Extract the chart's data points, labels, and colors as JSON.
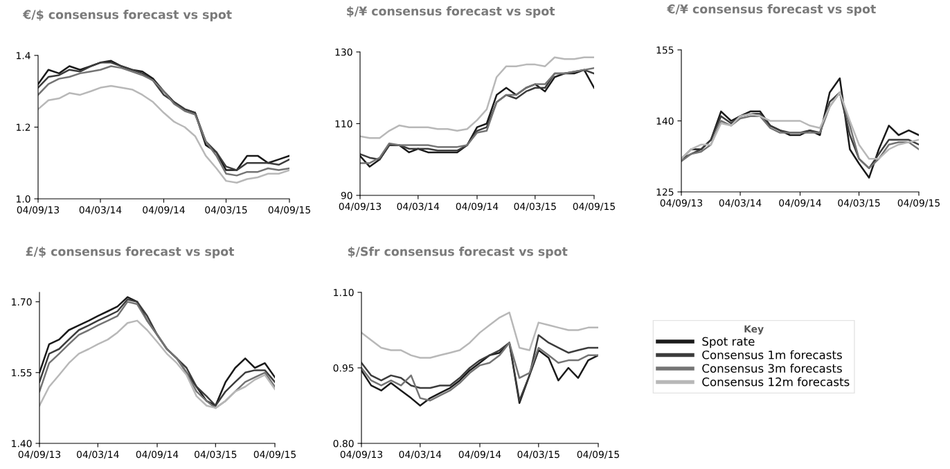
{
  "chart_data": [
    {
      "type": "line",
      "title": "€/$ consensus forecast vs spot",
      "legend_title": "Key",
      "x": [
        "2013-09-04",
        "2013-10-04",
        "2013-11-04",
        "2013-12-04",
        "2014-01-04",
        "2014-02-04",
        "2014-03-04",
        "2014-04-04",
        "2014-05-04",
        "2014-06-04",
        "2014-07-04",
        "2014-08-04",
        "2014-09-04",
        "2014-10-04",
        "2014-11-04",
        "2014-12-04",
        "2015-01-04",
        "2015-02-04",
        "2015-03-04",
        "2015-04-04",
        "2015-05-04",
        "2015-06-04",
        "2015-07-04",
        "2015-08-04",
        "2015-09-04"
      ],
      "series": [
        {
          "name": "Spot rate",
          "color": "#1a1a1a",
          "values": [
            1.32,
            1.36,
            1.35,
            1.37,
            1.36,
            1.37,
            1.38,
            1.385,
            1.37,
            1.36,
            1.355,
            1.335,
            1.3,
            1.27,
            1.25,
            1.24,
            1.15,
            1.13,
            1.08,
            1.08,
            1.12,
            1.12,
            1.1,
            1.11,
            1.12
          ]
        },
        {
          "name": "Consensus 1m forecasts",
          "color": "#3c3c3c",
          "values": [
            1.31,
            1.34,
            1.345,
            1.36,
            1.355,
            1.37,
            1.38,
            1.38,
            1.37,
            1.36,
            1.35,
            1.33,
            1.29,
            1.27,
            1.25,
            1.24,
            1.16,
            1.13,
            1.09,
            1.08,
            1.1,
            1.1,
            1.1,
            1.095,
            1.11
          ]
        },
        {
          "name": "Consensus 3m forecasts",
          "color": "#747474",
          "values": [
            1.29,
            1.32,
            1.335,
            1.34,
            1.35,
            1.355,
            1.36,
            1.37,
            1.365,
            1.355,
            1.345,
            1.33,
            1.3,
            1.265,
            1.245,
            1.235,
            1.16,
            1.12,
            1.07,
            1.065,
            1.075,
            1.075,
            1.085,
            1.08,
            1.085
          ]
        },
        {
          "name": "Consensus 12m forecasts",
          "color": "#b8b8b8",
          "values": [
            1.25,
            1.275,
            1.28,
            1.295,
            1.29,
            1.3,
            1.31,
            1.315,
            1.31,
            1.305,
            1.29,
            1.27,
            1.24,
            1.215,
            1.2,
            1.175,
            1.12,
            1.085,
            1.05,
            1.045,
            1.055,
            1.06,
            1.07,
            1.07,
            1.08
          ]
        }
      ],
      "xlim": [
        "2013-09-04",
        "2015-09-04"
      ],
      "xticks": [
        {
          "value": "2013-09-04",
          "label": "04/09/13"
        },
        {
          "value": "2014-03-04",
          "label": "04/03/14"
        },
        {
          "value": "2014-09-04",
          "label": "04/09/14"
        },
        {
          "value": "2015-03-04",
          "label": "04/03/15"
        },
        {
          "value": "2015-09-04",
          "label": "04/09/15"
        }
      ],
      "ylim": [
        1.0,
        1.4
      ],
      "yticks": [
        {
          "value": 1.0,
          "label": "1.0"
        },
        {
          "value": 1.2,
          "label": "1.2"
        },
        {
          "value": 1.4,
          "label": "1.4"
        }
      ],
      "grid": false,
      "legend": "right"
    },
    {
      "type": "line",
      "title": "$/¥ consensus forecast vs spot",
      "x": [
        "2013-09-04",
        "2013-10-04",
        "2013-11-04",
        "2013-12-04",
        "2014-01-04",
        "2014-02-04",
        "2014-03-04",
        "2014-04-04",
        "2014-05-04",
        "2014-06-04",
        "2014-07-04",
        "2014-08-04",
        "2014-09-04",
        "2014-10-04",
        "2014-11-04",
        "2014-12-04",
        "2015-01-04",
        "2015-02-04",
        "2015-03-04",
        "2015-04-04",
        "2015-05-04",
        "2015-06-04",
        "2015-07-04",
        "2015-08-04",
        "2015-09-04"
      ],
      "series": [
        {
          "color": "#1a1a1a",
          "values": [
            101,
            98,
            100,
            104,
            104,
            102,
            103,
            102,
            102,
            102,
            102,
            104,
            109,
            110,
            118,
            120,
            118,
            120,
            121,
            119,
            123,
            124,
            124,
            125,
            120
          ]
        },
        {
          "color": "#3c3c3c",
          "values": [
            101.5,
            100.5,
            100,
            104,
            104,
            103,
            103,
            103,
            102.5,
            102.5,
            102.5,
            104,
            108,
            109,
            116,
            118,
            117,
            119,
            120,
            120,
            124,
            124,
            124.5,
            125,
            124
          ]
        },
        {
          "color": "#747474",
          "values": [
            99,
            99,
            100.5,
            104.5,
            104,
            104,
            104,
            104,
            103.5,
            103.5,
            103.5,
            104,
            107.5,
            108,
            116,
            118,
            118,
            120,
            121,
            121,
            124,
            124,
            124.5,
            125,
            125.5
          ]
        },
        {
          "color": "#b8b8b8",
          "values": [
            106.5,
            106,
            106,
            108,
            109.5,
            109,
            109,
            109,
            108.5,
            108.5,
            108,
            108.5,
            111,
            114,
            123,
            126,
            126,
            126.5,
            126.5,
            126,
            128.5,
            128,
            128,
            128.5,
            128.5
          ]
        }
      ],
      "xlim": [
        "2013-09-04",
        "2015-09-04"
      ],
      "xticks": [
        {
          "value": "2013-09-04",
          "label": "04/09/13"
        },
        {
          "value": "2014-03-04",
          "label": "04/03/14"
        },
        {
          "value": "2014-09-04",
          "label": "04/09/14"
        },
        {
          "value": "2015-03-04",
          "label": "04/03/15"
        },
        {
          "value": "2015-09-04",
          "label": "04/09/15"
        }
      ],
      "ylim": [
        90,
        130
      ],
      "yticks": [
        90,
        110,
        130
      ],
      "grid": false
    },
    {
      "type": "line",
      "title": "€/¥ consensus forecast vs spot",
      "x": [
        "2013-09-04",
        "2013-10-04",
        "2013-11-04",
        "2013-12-04",
        "2014-01-04",
        "2014-02-04",
        "2014-03-04",
        "2014-04-04",
        "2014-05-04",
        "2014-06-04",
        "2014-07-04",
        "2014-08-04",
        "2014-09-04",
        "2014-10-04",
        "2014-11-04",
        "2014-12-04",
        "2015-01-04",
        "2015-02-04",
        "2015-03-04",
        "2015-04-04",
        "2015-05-04",
        "2015-06-04",
        "2015-07-04",
        "2015-08-04",
        "2015-09-04"
      ],
      "series": [
        {
          "color": "#1a1a1a",
          "values": [
            132,
            134,
            134,
            136,
            142,
            140,
            141,
            142,
            142,
            139,
            138,
            137,
            137,
            138,
            137,
            146,
            149,
            134,
            131,
            128,
            134,
            139,
            137,
            138,
            137
          ]
        },
        {
          "color": "#3c3c3c",
          "values": [
            132,
            133,
            134,
            136,
            141,
            139.5,
            141,
            141.5,
            141.5,
            139,
            138,
            137.5,
            137.5,
            138,
            137.5,
            144,
            146,
            137,
            132,
            130,
            133,
            136,
            136,
            136,
            135
          ]
        },
        {
          "color": "#747474",
          "values": [
            131.5,
            133,
            133.5,
            135,
            140,
            139,
            140.5,
            141,
            141,
            138.5,
            137.5,
            137.5,
            137.5,
            137.5,
            137.5,
            143,
            146,
            139,
            132,
            130,
            132,
            135,
            135.5,
            135.5,
            134
          ]
        },
        {
          "color": "#b8b8b8",
          "values": [
            132,
            134,
            135,
            135,
            139.5,
            139,
            141,
            141.5,
            141,
            140,
            140,
            140,
            140,
            139,
            138.5,
            143,
            146,
            140,
            135,
            132,
            132,
            134,
            135,
            135.5,
            136
          ]
        }
      ],
      "xlim": [
        "2013-09-04",
        "2015-09-04"
      ],
      "xticks": [
        {
          "value": "2013-09-04",
          "label": "04/09/13"
        },
        {
          "value": "2014-03-04",
          "label": "04/03/14"
        },
        {
          "value": "2014-09-04",
          "label": "04/09/14"
        },
        {
          "value": "2015-03-04",
          "label": "04/03/15"
        },
        {
          "value": "2015-09-04",
          "label": "04/09/15"
        }
      ],
      "ylim": [
        125,
        155
      ],
      "yticks": [
        125,
        140,
        155
      ],
      "grid": false
    },
    {
      "type": "line",
      "title": "£/$ consensus forecast vs spot",
      "x": [
        "2013-09-04",
        "2013-10-04",
        "2013-11-04",
        "2013-12-04",
        "2014-01-04",
        "2014-02-04",
        "2014-03-04",
        "2014-04-04",
        "2014-05-04",
        "2014-06-04",
        "2014-07-04",
        "2014-08-04",
        "2014-09-04",
        "2014-10-04",
        "2014-11-04",
        "2014-12-04",
        "2015-01-04",
        "2015-02-04",
        "2015-03-04",
        "2015-04-04",
        "2015-05-04",
        "2015-06-04",
        "2015-07-04",
        "2015-08-04",
        "2015-09-04"
      ],
      "series": [
        {
          "color": "#1a1a1a",
          "values": [
            1.55,
            1.61,
            1.62,
            1.64,
            1.65,
            1.66,
            1.67,
            1.68,
            1.69,
            1.71,
            1.7,
            1.66,
            1.63,
            1.6,
            1.58,
            1.55,
            1.52,
            1.49,
            1.48,
            1.53,
            1.56,
            1.58,
            1.56,
            1.57,
            1.54
          ]
        },
        {
          "color": "#3c3c3c",
          "values": [
            1.53,
            1.59,
            1.6,
            1.62,
            1.64,
            1.65,
            1.66,
            1.67,
            1.68,
            1.705,
            1.7,
            1.67,
            1.63,
            1.6,
            1.58,
            1.56,
            1.52,
            1.5,
            1.48,
            1.51,
            1.53,
            1.55,
            1.555,
            1.555,
            1.53
          ]
        },
        {
          "color": "#747474",
          "values": [
            1.51,
            1.57,
            1.59,
            1.61,
            1.63,
            1.64,
            1.65,
            1.66,
            1.67,
            1.7,
            1.695,
            1.66,
            1.63,
            1.6,
            1.58,
            1.55,
            1.51,
            1.49,
            1.475,
            1.49,
            1.51,
            1.53,
            1.54,
            1.55,
            1.52
          ]
        },
        {
          "color": "#b8b8b8",
          "values": [
            1.48,
            1.52,
            1.545,
            1.57,
            1.59,
            1.6,
            1.61,
            1.62,
            1.635,
            1.655,
            1.66,
            1.64,
            1.615,
            1.59,
            1.57,
            1.545,
            1.5,
            1.48,
            1.475,
            1.49,
            1.51,
            1.52,
            1.535,
            1.545,
            1.515
          ]
        }
      ],
      "xlim": [
        "2013-09-04",
        "2015-09-04"
      ],
      "xticks": [
        {
          "value": "2013-09-04",
          "label": "04/09/13"
        },
        {
          "value": "2014-03-04",
          "label": "04/03/14"
        },
        {
          "value": "2014-09-04",
          "label": "04/09/14"
        },
        {
          "value": "2015-03-04",
          "label": "04/03/15"
        },
        {
          "value": "2015-09-04",
          "label": "04/09/15"
        }
      ],
      "ylim": [
        1.4,
        1.72
      ],
      "yticks": [
        {
          "value": 1.4,
          "label": "1.40"
        },
        {
          "value": 1.55,
          "label": "1.55"
        },
        {
          "value": 1.7,
          "label": "1.70"
        }
      ],
      "grid": false
    },
    {
      "type": "line",
      "title": "$/Sfr consensus forecast vs spot",
      "x": [
        "2013-09-04",
        "2013-10-04",
        "2013-11-04",
        "2013-12-04",
        "2014-01-04",
        "2014-02-04",
        "2014-03-04",
        "2014-04-04",
        "2014-05-04",
        "2014-06-04",
        "2014-07-04",
        "2014-08-04",
        "2014-09-04",
        "2014-10-04",
        "2014-11-04",
        "2014-12-04",
        "2015-01-04",
        "2015-02-04",
        "2015-03-04",
        "2015-04-04",
        "2015-05-04",
        "2015-06-04",
        "2015-07-04",
        "2015-08-04",
        "2015-09-04"
      ],
      "series": [
        {
          "color": "#1a1a1a",
          "values": [
            0.945,
            0.915,
            0.905,
            0.92,
            0.905,
            0.89,
            0.875,
            0.89,
            0.9,
            0.91,
            0.925,
            0.945,
            0.96,
            0.975,
            0.98,
            1.0,
            0.88,
            0.935,
            0.985,
            0.97,
            0.925,
            0.95,
            0.93,
            0.965,
            0.975
          ]
        },
        {
          "color": "#3c3c3c",
          "values": [
            0.96,
            0.935,
            0.925,
            0.935,
            0.93,
            0.915,
            0.91,
            0.91,
            0.915,
            0.915,
            0.93,
            0.95,
            0.965,
            0.975,
            0.985,
            1.0,
            0.885,
            0.935,
            1.015,
            1.0,
            0.99,
            0.98,
            0.985,
            0.99,
            0.99
          ]
        },
        {
          "color": "#747474",
          "values": [
            0.95,
            0.925,
            0.915,
            0.925,
            0.915,
            0.935,
            0.89,
            0.885,
            0.895,
            0.905,
            0.92,
            0.94,
            0.955,
            0.96,
            0.975,
            1.0,
            0.93,
            0.94,
            0.99,
            0.975,
            0.96,
            0.965,
            0.965,
            0.975,
            0.975
          ]
        },
        {
          "color": "#b8b8b8",
          "values": [
            1.02,
            1.005,
            0.99,
            0.985,
            0.985,
            0.975,
            0.97,
            0.97,
            0.975,
            0.98,
            0.985,
            1.0,
            1.02,
            1.035,
            1.05,
            1.06,
            0.99,
            0.985,
            1.04,
            1.035,
            1.03,
            1.025,
            1.025,
            1.03,
            1.03
          ]
        }
      ],
      "xlim": [
        "2013-09-04",
        "2015-09-04"
      ],
      "xticks": [
        {
          "value": "2013-09-04",
          "label": "04/09/13"
        },
        {
          "value": "2014-03-04",
          "label": "04/03/14"
        },
        {
          "value": "2014-09-04",
          "label": "04/09/14"
        },
        {
          "value": "2015-03-04",
          "label": "04/03/15"
        },
        {
          "value": "2015-09-04",
          "label": "04/09/15"
        }
      ],
      "ylim": [
        0.8,
        1.1
      ],
      "yticks": [
        {
          "value": 0.8,
          "label": "0.80"
        },
        {
          "value": 0.95,
          "label": "0.95"
        },
        {
          "value": 1.1,
          "label": "1.10"
        }
      ],
      "grid": false
    }
  ]
}
